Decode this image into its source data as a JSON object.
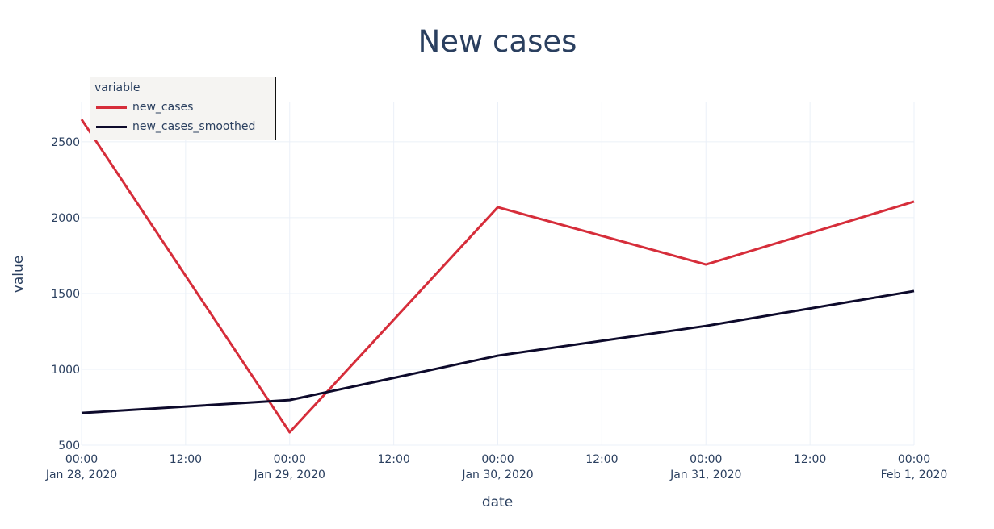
{
  "chart_data": {
    "type": "line",
    "title": "New cases",
    "xlabel": "date",
    "ylabel": "value",
    "x": [
      "2020-01-28",
      "2020-01-29",
      "2020-01-30",
      "2020-01-31",
      "2020-02-01"
    ],
    "x_tick_labels": [
      {
        "time": "00:00",
        "date": "Jan 28, 2020"
      },
      {
        "time": "12:00",
        "date": ""
      },
      {
        "time": "00:00",
        "date": "Jan 29, 2020"
      },
      {
        "time": "12:00",
        "date": ""
      },
      {
        "time": "00:00",
        "date": "Jan 30, 2020"
      },
      {
        "time": "12:00",
        "date": ""
      },
      {
        "time": "00:00",
        "date": "Jan 31, 2020"
      },
      {
        "time": "12:00",
        "date": ""
      },
      {
        "time": "00:00",
        "date": "Feb 1, 2020"
      }
    ],
    "y_ticks": [
      500,
      1000,
      1500,
      2000,
      2500
    ],
    "ylim": [
      500,
      2760
    ],
    "grid": true,
    "legend": {
      "title": "variable",
      "placement": "top-left"
    },
    "series": [
      {
        "name": "new_cases",
        "color": "#d62d3a",
        "values": [
          2648,
          585,
          2069,
          1691,
          2106
        ]
      },
      {
        "name": "new_cases_smoothed",
        "color": "#0d0a2b",
        "values": [
          712,
          797,
          1090,
          1286,
          1516
        ]
      }
    ]
  }
}
